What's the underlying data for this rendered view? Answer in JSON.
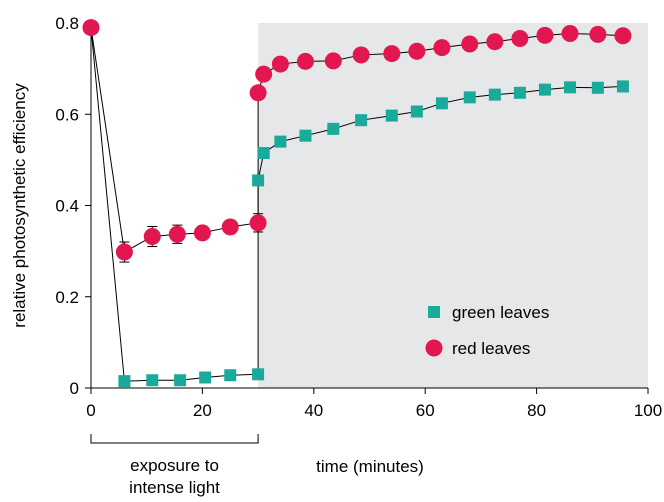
{
  "chart_data": {
    "type": "scatter",
    "xlabel": "time (minutes)",
    "ylabel": "relative photosynthetic efficiency",
    "xlim": [
      0,
      100
    ],
    "ylim": [
      0,
      0.8
    ],
    "x_ticks": [
      0,
      20,
      40,
      60,
      80,
      100
    ],
    "y_ticks": [
      0,
      0.2,
      0.4,
      0.6,
      0.8
    ],
    "x_tick_labels": [
      "0",
      "20",
      "40",
      "60",
      "80",
      "100"
    ],
    "y_tick_labels": [
      "0",
      "0.2",
      "0.4",
      "0.6",
      "0.8"
    ],
    "grid": false,
    "legend_position": "bottom-right",
    "shaded_region": {
      "x_start": 30,
      "x_end": 100,
      "color": "#e6e7e8"
    },
    "annotation": {
      "line1": "exposure to",
      "line2": "intense light",
      "x_start": 0,
      "x_end": 30
    },
    "series": [
      {
        "name": "green leaves",
        "marker": "square",
        "color": "#1aaa9b",
        "x": [
          0,
          6,
          11,
          16,
          20.5,
          25,
          30,
          30,
          31,
          34,
          38.5,
          43.5,
          48.5,
          54,
          58.5,
          63,
          68,
          72.5,
          77,
          81.5,
          86,
          91,
          95.5
        ],
        "y": [
          0.79,
          0.015,
          0.017,
          0.017,
          0.023,
          0.028,
          0.03,
          0.455,
          0.515,
          0.54,
          0.553,
          0.568,
          0.587,
          0.597,
          0.606,
          0.624,
          0.637,
          0.643,
          0.647,
          0.654,
          0.659,
          0.658,
          0.661
        ]
      },
      {
        "name": "red leaves",
        "marker": "circle",
        "color": "#e3174f",
        "x": [
          0,
          6,
          11,
          15.5,
          20,
          25,
          30,
          30,
          31,
          34,
          38.5,
          43.5,
          48.5,
          54,
          58.5,
          63,
          68,
          72.5,
          77,
          81.5,
          86,
          91,
          95.5
        ],
        "y": [
          0.79,
          0.298,
          0.332,
          0.337,
          0.34,
          0.353,
          0.362,
          0.647,
          0.688,
          0.71,
          0.716,
          0.717,
          0.73,
          0.733,
          0.738,
          0.746,
          0.754,
          0.759,
          0.766,
          0.773,
          0.777,
          0.775,
          0.772
        ],
        "error": [
          0,
          0.022,
          0.022,
          0.02,
          0.012,
          0.012,
          0.02,
          0,
          0,
          0,
          0,
          0,
          0,
          0,
          0,
          0,
          0,
          0,
          0,
          0,
          0,
          0,
          0
        ]
      }
    ]
  }
}
